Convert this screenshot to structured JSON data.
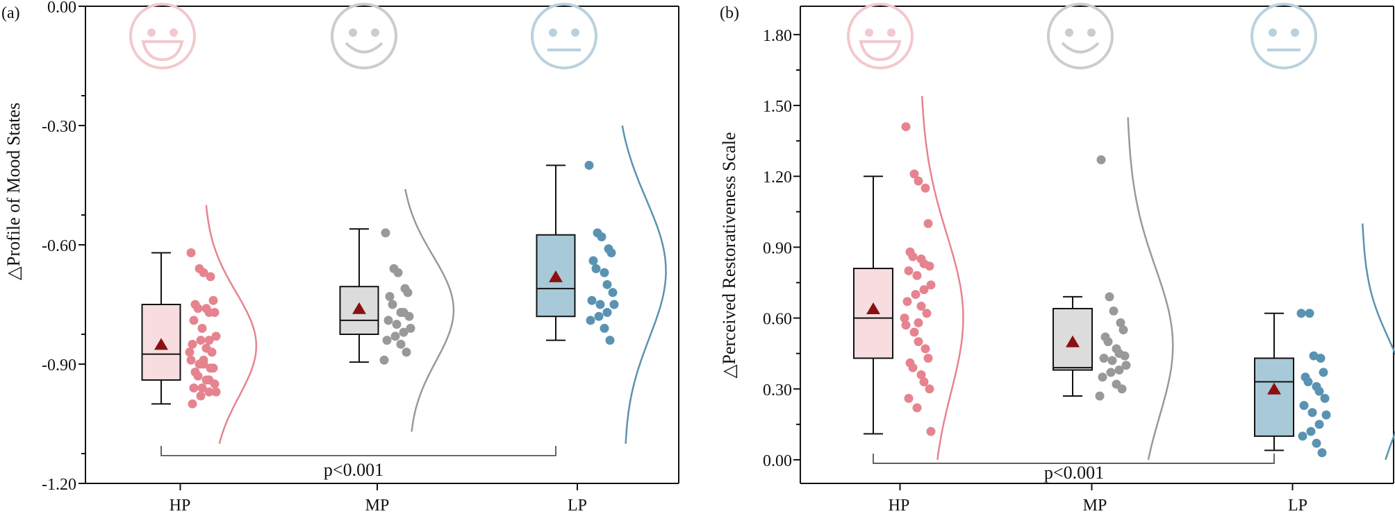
{
  "colors": {
    "HP": "#e5848f",
    "HP_light": "#f7dde0",
    "MP": "#999999",
    "MP_light": "#dcdcdc",
    "LP": "#5a93b1",
    "LP_light": "#a8c9d8",
    "HP_face": "#f2c9cd",
    "MP_face": "#cccccc",
    "LP_face": "#b9d1de",
    "mean_marker": "#8b1010",
    "axis": "#111111"
  },
  "chart_data": [
    {
      "id": "a",
      "type": "box",
      "panel_label": "(a)",
      "ylabel": "△Profile of Mood States",
      "xlabel": "",
      "categories": [
        "HP",
        "MP",
        "LP"
      ],
      "ylim": [
        -1.2,
        0.0
      ],
      "yticks": [
        -1.2,
        -0.9,
        -0.6,
        -0.3,
        0.0
      ],
      "ytick_labels": [
        "-1.20",
        "-0.90",
        "-0.60",
        "-0.30",
        "0.00"
      ],
      "minor_step": 0.075,
      "faces": [
        "smile-big",
        "smile",
        "neutral"
      ],
      "annotation": {
        "text": "p<0.001",
        "from": "HP",
        "to": "LP",
        "y": -1.13
      },
      "boxes": [
        {
          "name": "HP",
          "whisker_low": -1.0,
          "q1": -0.94,
          "median": -0.875,
          "q3": -0.75,
          "whisker_high": -0.62,
          "mean": -0.85
        },
        {
          "name": "MP",
          "whisker_low": -0.895,
          "q1": -0.825,
          "median": -0.79,
          "q3": -0.705,
          "whisker_high": -0.56,
          "mean": -0.76
        },
        {
          "name": "LP",
          "whisker_low": -0.84,
          "q1": -0.78,
          "median": -0.71,
          "q3": -0.575,
          "whisker_high": -0.4,
          "mean": -0.68
        }
      ],
      "points": [
        {
          "name": "HP",
          "values": [
            -0.62,
            -0.66,
            -0.67,
            -0.68,
            -0.74,
            -0.75,
            -0.76,
            -0.76,
            -0.77,
            -0.77,
            -0.79,
            -0.81,
            -0.83,
            -0.84,
            -0.84,
            -0.85,
            -0.86,
            -0.87,
            -0.87,
            -0.89,
            -0.89,
            -0.9,
            -0.9,
            -0.91,
            -0.91,
            -0.92,
            -0.93,
            -0.94,
            -0.94,
            -0.95,
            -0.96,
            -0.96,
            -0.97,
            -0.97,
            -0.98,
            -1.0
          ]
        },
        {
          "name": "MP",
          "values": [
            -0.57,
            -0.66,
            -0.67,
            -0.71,
            -0.72,
            -0.73,
            -0.75,
            -0.77,
            -0.77,
            -0.78,
            -0.79,
            -0.8,
            -0.81,
            -0.82,
            -0.83,
            -0.84,
            -0.85,
            -0.87,
            -0.89
          ]
        },
        {
          "name": "LP",
          "values": [
            -0.4,
            -0.57,
            -0.58,
            -0.61,
            -0.62,
            -0.64,
            -0.66,
            -0.67,
            -0.7,
            -0.72,
            -0.74,
            -0.75,
            -0.75,
            -0.77,
            -0.78,
            -0.79,
            -0.81,
            -0.84
          ]
        }
      ],
      "densities": [
        {
          "name": "HP",
          "y_range": [
            -1.1,
            -0.5
          ],
          "peak": -0.85
        },
        {
          "name": "MP",
          "y_range": [
            -1.07,
            -0.46
          ],
          "peak": -0.76
        },
        {
          "name": "LP",
          "y_range": [
            -1.1,
            -0.3
          ],
          "peak": -0.66
        }
      ]
    },
    {
      "id": "b",
      "type": "box",
      "panel_label": "(b)",
      "ylabel": "△Perceived Restorativeness Scale",
      "xlabel": "",
      "categories": [
        "HP",
        "MP",
        "LP"
      ],
      "ylim": [
        -0.1,
        1.92
      ],
      "yticks": [
        0.0,
        0.3,
        0.6,
        0.9,
        1.2,
        1.5,
        1.8
      ],
      "ytick_labels": [
        "0.00",
        "0.30",
        "0.60",
        "0.90",
        "1.20",
        "1.50",
        "1.80"
      ],
      "minor_step": 0.15,
      "faces": [
        "smile-big",
        "smile",
        "neutral"
      ],
      "annotation": {
        "text": "p<0.001",
        "from": "HP",
        "to": "LP",
        "y": -0.015
      },
      "boxes": [
        {
          "name": "HP",
          "whisker_low": 0.11,
          "q1": 0.43,
          "median": 0.6,
          "q3": 0.81,
          "whisker_high": 1.2,
          "mean": 0.64
        },
        {
          "name": "MP",
          "whisker_low": 0.27,
          "q1": 0.38,
          "median": 0.39,
          "q3": 0.64,
          "whisker_high": 0.69,
          "mean": 0.5
        },
        {
          "name": "LP",
          "whisker_low": 0.04,
          "q1": 0.1,
          "median": 0.33,
          "q3": 0.43,
          "whisker_high": 0.62,
          "mean": 0.3
        }
      ],
      "points": [
        {
          "name": "HP",
          "values": [
            1.41,
            1.21,
            1.18,
            1.15,
            1.0,
            0.88,
            0.86,
            0.85,
            0.83,
            0.82,
            0.8,
            0.78,
            0.74,
            0.72,
            0.7,
            0.67,
            0.65,
            0.62,
            0.6,
            0.58,
            0.57,
            0.54,
            0.5,
            0.47,
            0.43,
            0.41,
            0.39,
            0.36,
            0.33,
            0.3,
            0.26,
            0.22,
            0.12
          ]
        },
        {
          "name": "MP",
          "values": [
            1.27,
            0.69,
            0.63,
            0.58,
            0.55,
            0.52,
            0.5,
            0.47,
            0.45,
            0.44,
            0.43,
            0.42,
            0.4,
            0.38,
            0.37,
            0.35,
            0.32,
            0.3,
            0.27
          ]
        },
        {
          "name": "LP",
          "values": [
            0.62,
            0.62,
            0.44,
            0.43,
            0.37,
            0.35,
            0.33,
            0.31,
            0.29,
            0.26,
            0.23,
            0.2,
            0.19,
            0.15,
            0.12,
            0.1,
            0.07,
            0.03
          ]
        }
      ],
      "densities": [
        {
          "name": "HP",
          "y_range": [
            0.0,
            1.54
          ],
          "peak": 0.62
        },
        {
          "name": "MP",
          "y_range": [
            0.0,
            1.45
          ],
          "peak": 0.5
        },
        {
          "name": "LP",
          "y_range": [
            0.0,
            1.0
          ],
          "peak": 0.3
        }
      ]
    }
  ]
}
